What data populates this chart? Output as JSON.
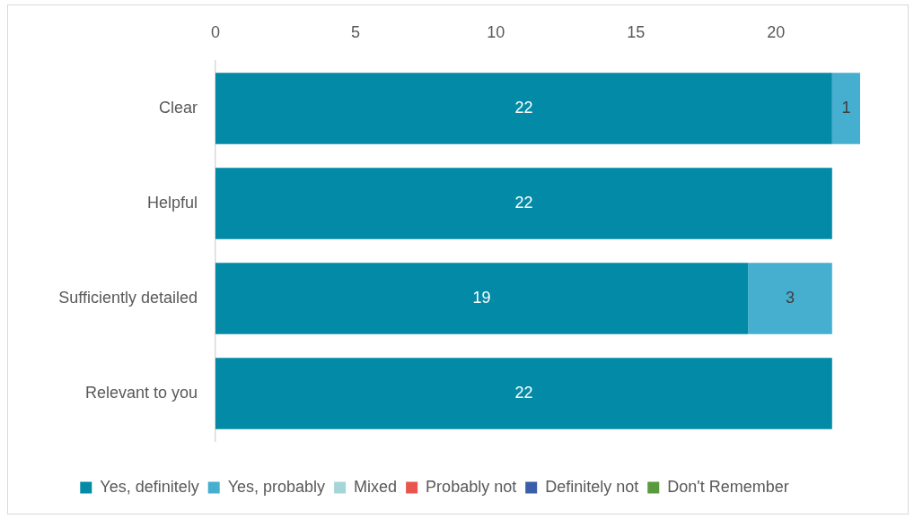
{
  "chart_data": {
    "type": "bar",
    "orientation": "horizontal",
    "stacked": true,
    "categories": [
      "Clear",
      "Helpful",
      "Sufficiently detailed",
      "Relevant to you"
    ],
    "series": [
      {
        "name": "Yes, definitely",
        "color": "#028aa6",
        "values": [
          22,
          22,
          19,
          22
        ],
        "value_labels": [
          "22",
          "22",
          "19",
          "22"
        ]
      },
      {
        "name": "Yes, probably",
        "color": "#46aecf",
        "values": [
          1,
          0,
          3,
          0
        ],
        "value_labels": [
          "1",
          null,
          "3",
          null
        ]
      },
      {
        "name": "Mixed",
        "color": "#a6d5d8",
        "values": [
          0,
          0,
          0,
          0
        ]
      },
      {
        "name": "Probably not",
        "color": "#e9544f",
        "values": [
          0,
          0,
          0,
          0
        ]
      },
      {
        "name": "Definitely not",
        "color": "#3a5ea9",
        "values": [
          0,
          0,
          0,
          0
        ]
      },
      {
        "name": "Don't Remember",
        "color": "#5b9a3c",
        "values": [
          0,
          0,
          0,
          0
        ]
      }
    ],
    "xlim": [
      0,
      23
    ],
    "xticks": [
      0,
      5,
      10,
      15,
      20
    ],
    "grid": false,
    "legend": "bottom"
  }
}
